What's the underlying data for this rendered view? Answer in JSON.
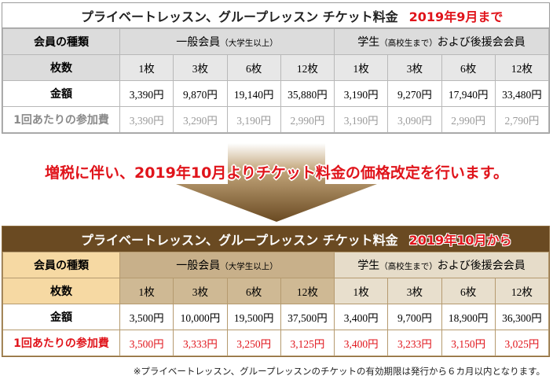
{
  "old_table": {
    "title": "プライベートレッスン、グループレッスン チケット料金",
    "period": "2019年9月まで",
    "row_labels": {
      "member_type": "会員の種類",
      "count": "枚数",
      "price": "金額",
      "per_session": "1回あたりの参加費"
    },
    "general": {
      "main": "一般会員",
      "sub": "（大学生以上）"
    },
    "student": {
      "main": "学生",
      "sub": "（高校生まで）",
      "tail": "および後援会会員"
    },
    "counts": [
      "1枚",
      "3枚",
      "6枚",
      "12枚",
      "1枚",
      "3枚",
      "6枚",
      "12枚"
    ],
    "prices": [
      "3,390円",
      "9,870円",
      "19,140円",
      "35,880円",
      "3,190円",
      "9,270円",
      "17,940円",
      "33,480円"
    ],
    "per_session": [
      "3,390円",
      "3,290円",
      "3,190円",
      "2,990円",
      "3,190円",
      "3,090円",
      "2,990円",
      "2,790円"
    ]
  },
  "announcement": "増税に伴い、2019年10月よりチケット料金の価格改定を行います。",
  "new_table": {
    "title": "プライベートレッスン、グループレッスン チケット料金",
    "period": "2019年10月から",
    "row_labels": {
      "member_type": "会員の種類",
      "count": "枚数",
      "price": "金額",
      "per_session": "1回あたりの参加費"
    },
    "general": {
      "main": "一般会員",
      "sub": "（大学生以上）"
    },
    "student": {
      "main": "学生",
      "sub": "（高校生まで）",
      "tail": "および後援会会員"
    },
    "counts": [
      "1枚",
      "3枚",
      "6枚",
      "12枚",
      "1枚",
      "3枚",
      "6枚",
      "12枚"
    ],
    "prices": [
      "3,500円",
      "10,000円",
      "19,500円",
      "37,500円",
      "3,400円",
      "9,700円",
      "18,900円",
      "36,300円"
    ],
    "per_session": [
      "3,500円",
      "3,333円",
      "3,250円",
      "3,125円",
      "3,400円",
      "3,233円",
      "3,150円",
      "3,025円"
    ]
  },
  "footnote": "※プライベートレッスン、グループレッスンのチケットの有効期限は発行から６カ月以内となります。",
  "colors": {
    "accent_red": "#e0141b",
    "brown": "#6a4a22",
    "label_cream": "#f6d9a3"
  },
  "icons": [
    "down-arrow-icon"
  ]
}
